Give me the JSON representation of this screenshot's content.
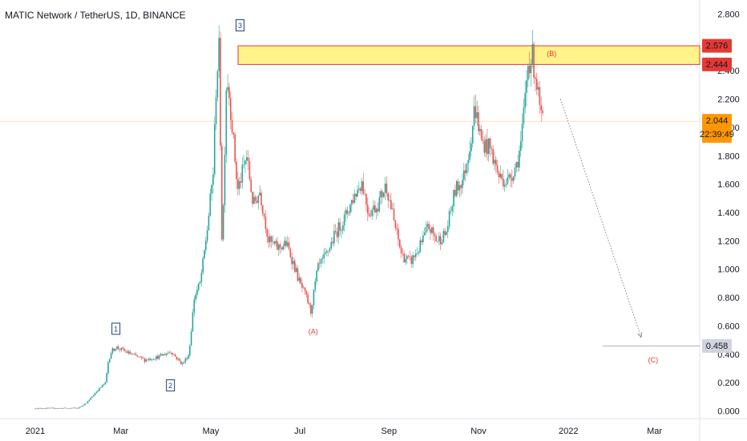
{
  "header": {
    "title": "MATIC Network / TetherUS, 1D, BINANCE"
  },
  "colors": {
    "up": "#26a69a",
    "down": "#ef5350",
    "zone_fill": "#fff176",
    "zone_border": "#e53935",
    "price_tag": "#ff9800",
    "wave_red": "#e53935",
    "wave_box": "#1f3d7a"
  },
  "chart_data": {
    "type": "candlestick",
    "title": "MATIC Network / TetherUS, 1D, BINANCE",
    "ylim": [
      0,
      2.8
    ],
    "yticks": [
      "0.000",
      "0.200",
      "0.400",
      "0.600",
      "0.800",
      "1.000",
      "1.200",
      "1.400",
      "1.600",
      "1.800",
      "2.000",
      "2.200",
      "2.400",
      "2.800"
    ],
    "xticks": [
      {
        "label": "2021",
        "t": 0
      },
      {
        "label": "Mar",
        "t": 1.93
      },
      {
        "label": "May",
        "t": 3.96
      },
      {
        "label": "Jul",
        "t": 5.97
      },
      {
        "label": "Sep",
        "t": 7.98
      },
      {
        "label": "Nov",
        "t": 10.0
      },
      {
        "label": "2022",
        "t": 12.03
      },
      {
        "label": "Mar",
        "t": 13.97
      }
    ],
    "price_path": [
      [
        0,
        0.018
      ],
      [
        1.0,
        0.02
      ],
      [
        1.2,
        0.06
      ],
      [
        1.45,
        0.15
      ],
      [
        1.62,
        0.2
      ],
      [
        1.68,
        0.35
      ],
      [
        1.75,
        0.42
      ],
      [
        1.85,
        0.45
      ],
      [
        2.2,
        0.4
      ],
      [
        2.5,
        0.36
      ],
      [
        2.8,
        0.38
      ],
      [
        3.1,
        0.42
      ],
      [
        3.2,
        0.38
      ],
      [
        3.35,
        0.33
      ],
      [
        3.5,
        0.4
      ],
      [
        3.62,
        0.8
      ],
      [
        3.75,
        0.9
      ],
      [
        3.82,
        1.05
      ],
      [
        3.92,
        1.3
      ],
      [
        4.05,
        1.7
      ],
      [
        4.12,
        2.35
      ],
      [
        4.18,
        2.55
      ],
      [
        4.25,
        1.1
      ],
      [
        4.35,
        2.4
      ],
      [
        4.45,
        2.1
      ],
      [
        4.6,
        1.55
      ],
      [
        4.8,
        1.8
      ],
      [
        4.95,
        1.45
      ],
      [
        5.1,
        1.55
      ],
      [
        5.3,
        1.2
      ],
      [
        5.5,
        1.15
      ],
      [
        5.7,
        1.18
      ],
      [
        5.85,
        1.05
      ],
      [
        6.0,
        0.9
      ],
      [
        6.15,
        0.8
      ],
      [
        6.25,
        0.7
      ],
      [
        6.4,
        1.0
      ],
      [
        6.6,
        1.1
      ],
      [
        6.8,
        1.25
      ],
      [
        7.0,
        1.35
      ],
      [
        7.2,
        1.5
      ],
      [
        7.4,
        1.62
      ],
      [
        7.55,
        1.4
      ],
      [
        7.75,
        1.45
      ],
      [
        7.95,
        1.6
      ],
      [
        8.15,
        1.3
      ],
      [
        8.3,
        1.1
      ],
      [
        8.5,
        1.05
      ],
      [
        8.7,
        1.15
      ],
      [
        8.9,
        1.3
      ],
      [
        9.1,
        1.2
      ],
      [
        9.3,
        1.25
      ],
      [
        9.5,
        1.55
      ],
      [
        9.7,
        1.65
      ],
      [
        9.85,
        1.9
      ],
      [
        9.95,
        2.15
      ],
      [
        10.1,
        1.9
      ],
      [
        10.3,
        1.85
      ],
      [
        10.5,
        1.65
      ],
      [
        10.7,
        1.62
      ],
      [
        10.9,
        1.75
      ],
      [
        11.0,
        1.9
      ],
      [
        11.15,
        2.45
      ],
      [
        11.25,
        2.5
      ],
      [
        11.35,
        2.3
      ],
      [
        11.45,
        2.05
      ]
    ],
    "resistance_zone": {
      "low": 2.444,
      "high": 2.576
    },
    "last_price": 2.044,
    "price_tags": [
      {
        "value": 2.576,
        "label": "2.576",
        "color": "#e53935"
      },
      {
        "value": 2.444,
        "label": "2.444",
        "color": "#e53935"
      },
      {
        "value": 2.044,
        "label": "2.044",
        "countdown": "22:39:49",
        "color": "#ff9800"
      },
      {
        "value": 0.458,
        "label": "0.458",
        "color": "#d1d4dc"
      }
    ],
    "target_line": {
      "value": 0.458,
      "t_start": 12.8
    },
    "projection": {
      "from": [
        11.85,
        2.2
      ],
      "to": [
        13.67,
        0.52
      ]
    },
    "wave_labels": [
      {
        "text": "1",
        "t": 1.82,
        "y": 0.58,
        "style": "box"
      },
      {
        "text": "2",
        "t": 3.05,
        "y": 0.18,
        "style": "box"
      },
      {
        "text": "3",
        "t": 4.62,
        "y": 2.72,
        "style": "box"
      },
      {
        "text": "(A)",
        "t": 6.27,
        "y": 0.56,
        "style": "red"
      },
      {
        "text": "(B)",
        "t": 11.65,
        "y": 2.52,
        "style": "red"
      },
      {
        "text": "(C)",
        "t": 13.94,
        "y": 0.36,
        "style": "red"
      }
    ]
  }
}
